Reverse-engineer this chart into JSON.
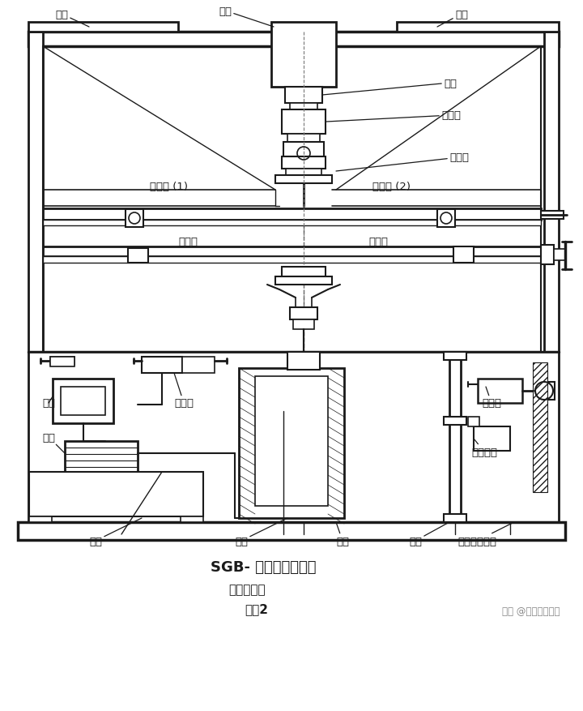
{
  "bg_color": "#ffffff",
  "line_color": "#1a1a1a",
  "title1": "SGB- 卧型抗折试验机",
  "title2": "机械结构图",
  "title3": "附图2",
  "watermark": "知乎 @苏州科准测控",
  "fig_w": 7.2,
  "fig_h": 8.78,
  "dpi": 100
}
